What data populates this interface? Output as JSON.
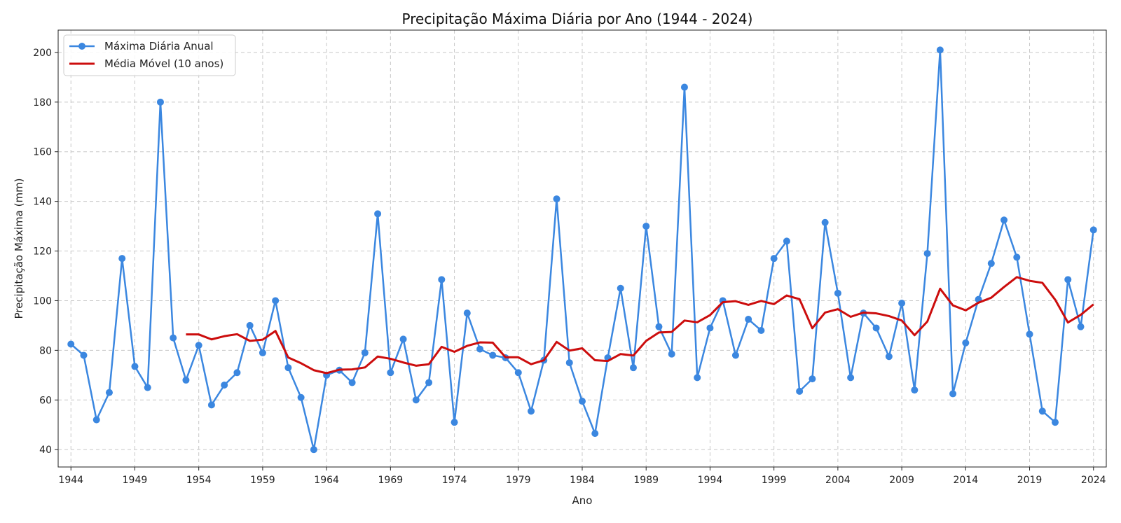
{
  "chart_data": {
    "type": "line",
    "title": "Precipitação Máxima Diária por Ano (1944 - 2024)",
    "xlabel": "Ano",
    "ylabel": "Precipitação Máxima (mm)",
    "xlim": [
      1943,
      2025
    ],
    "ylim": [
      33,
      209
    ],
    "grid": true,
    "legend_position": "top-left",
    "x_ticks": [
      1944,
      1949,
      1954,
      1959,
      1964,
      1969,
      1974,
      1979,
      1984,
      1989,
      1994,
      1999,
      2004,
      2009,
      2014,
      2019,
      2024
    ],
    "y_ticks": [
      40,
      60,
      80,
      100,
      120,
      140,
      160,
      180,
      200
    ],
    "x": [
      1944,
      1945,
      1946,
      1947,
      1948,
      1949,
      1950,
      1951,
      1952,
      1953,
      1954,
      1955,
      1956,
      1957,
      1958,
      1959,
      1960,
      1961,
      1962,
      1963,
      1964,
      1965,
      1966,
      1967,
      1968,
      1969,
      1970,
      1971,
      1972,
      1973,
      1974,
      1975,
      1976,
      1977,
      1978,
      1979,
      1980,
      1981,
      1982,
      1983,
      1984,
      1985,
      1986,
      1987,
      1988,
      1989,
      1990,
      1991,
      1992,
      1993,
      1994,
      1995,
      1996,
      1997,
      1998,
      1999,
      2000,
      2001,
      2002,
      2003,
      2004,
      2005,
      2006,
      2007,
      2008,
      2009,
      2010,
      2011,
      2012,
      2013,
      2014,
      2015,
      2016,
      2017,
      2018,
      2019,
      2020,
      2021,
      2022,
      2023,
      2024
    ],
    "series": [
      {
        "name": "Máxima Diária Anual",
        "color": "#3b87e0",
        "marker": "circle",
        "values": [
          82.5,
          78,
          52,
          63,
          117,
          73.5,
          65,
          180,
          85,
          68,
          82,
          58,
          66,
          71,
          90,
          79,
          100,
          73,
          61,
          40,
          70,
          72,
          67,
          79,
          135,
          71,
          84.5,
          60,
          67,
          108.5,
          51,
          95,
          80.5,
          78,
          77,
          71,
          55.5,
          76,
          141,
          75,
          59.5,
          46.5,
          77,
          105,
          73,
          130,
          89.5,
          78.5,
          186,
          69,
          89,
          100,
          78,
          92.5,
          88,
          117,
          124,
          63.5,
          68.5,
          131.5,
          103,
          69,
          95,
          89,
          77.5,
          99,
          64,
          119,
          201,
          62.5,
          83,
          100.5,
          115,
          132.5,
          117.5,
          86.5,
          55.5,
          51,
          108.5,
          89.5,
          128.5
        ]
      },
      {
        "name": "Média Móvel (10 anos)",
        "color": "#cc0d0d",
        "marker": "none",
        "values": [
          null,
          null,
          null,
          null,
          null,
          null,
          null,
          null,
          null,
          86.4,
          86.4,
          84.4,
          85.7,
          86.5,
          83.8,
          84.3,
          87.8,
          77.1,
          74.8,
          72.0,
          70.8,
          72.2,
          72.3,
          73.1,
          77.5,
          76.6,
          75.1,
          73.8,
          74.4,
          81.4,
          79.4,
          81.8,
          83.2,
          83.1,
          77.2,
          77.2,
          74.4,
          76.0,
          83.4,
          79.9,
          80.8,
          76.0,
          75.7,
          78.5,
          77.9,
          83.8,
          87.2,
          87.4,
          92.0,
          91.3,
          94.2,
          99.4,
          99.8,
          98.3,
          99.9,
          98.6,
          102.1,
          100.6,
          88.9,
          95.2,
          96.6,
          93.5,
          95.2,
          94.9,
          93.8,
          92.0,
          86.1,
          91.6,
          104.8,
          98.1,
          96.1,
          99.2,
          101.2,
          105.5,
          109.5,
          108.0,
          107.2,
          100.4,
          91.2,
          94.3,
          98.5
        ]
      }
    ]
  }
}
